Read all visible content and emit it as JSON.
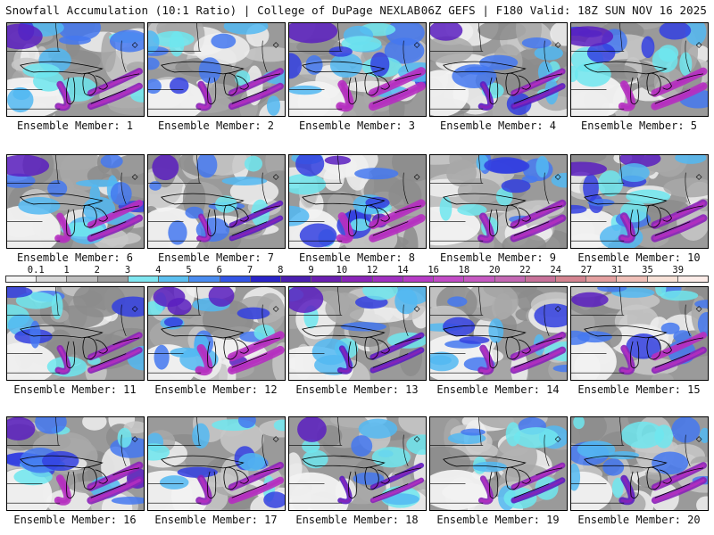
{
  "header": {
    "left_title": "Snowfall Accumulation (10:1 Ratio) | College of DuPage NEXLAB",
    "right_title": "06Z GEFS | F180 Valid: 18Z SUN NOV 16 2025"
  },
  "legend": {
    "labels": [
      "0.1",
      "1",
      "2",
      "3",
      "4",
      "5",
      "6",
      "7",
      "8",
      "9",
      "10",
      "12",
      "14",
      "16",
      "18",
      "20",
      "22",
      "24",
      "27",
      "31",
      "35",
      "39"
    ],
    "colors": [
      "#f4f4f4",
      "#d9d9d9",
      "#bdbdbd",
      "#9e9e9e",
      "#7fe6f0",
      "#5cc0f0",
      "#4a8cf0",
      "#3355e6",
      "#2a24c8",
      "#4b1fb0",
      "#6a1fb0",
      "#8a25b8",
      "#a030c0",
      "#b63cc6",
      "#c24cc6",
      "#c65ac2",
      "#c468b4",
      "#c8729a",
      "#d48490",
      "#e4a0a0",
      "#f0c0b8",
      "#f8e2d8",
      "#fcece8"
    ]
  },
  "panels": [
    {
      "member": "Ensemble Member: 1",
      "intensity": 0.55
    },
    {
      "member": "Ensemble Member: 2",
      "intensity": 0.55
    },
    {
      "member": "Ensemble Member: 3",
      "intensity": 0.85
    },
    {
      "member": "Ensemble Member: 4",
      "intensity": 0.45
    },
    {
      "member": "Ensemble Member: 5",
      "intensity": 0.7
    },
    {
      "member": "Ensemble Member: 6",
      "intensity": 0.6
    },
    {
      "member": "Ensemble Member: 7",
      "intensity": 0.35
    },
    {
      "member": "Ensemble Member: 8",
      "intensity": 0.75
    },
    {
      "member": "Ensemble Member: 9",
      "intensity": 0.65
    },
    {
      "member": "Ensemble Member: 10",
      "intensity": 0.7
    },
    {
      "member": "Ensemble Member: 11",
      "intensity": 0.5
    },
    {
      "member": "Ensemble Member: 12",
      "intensity": 0.8
    },
    {
      "member": "Ensemble Member: 13",
      "intensity": 0.4
    },
    {
      "member": "Ensemble Member: 14",
      "intensity": 0.6
    },
    {
      "member": "Ensemble Member: 15",
      "intensity": 0.55
    },
    {
      "member": "Ensemble Member: 16",
      "intensity": 0.7
    },
    {
      "member": "Ensemble Member: 17",
      "intensity": 0.6
    },
    {
      "member": "Ensemble Member: 18",
      "intensity": 0.3
    },
    {
      "member": "Ensemble Member: 19",
      "intensity": 0.4
    },
    {
      "member": "Ensemble Member: 20",
      "intensity": 0.55
    }
  ]
}
